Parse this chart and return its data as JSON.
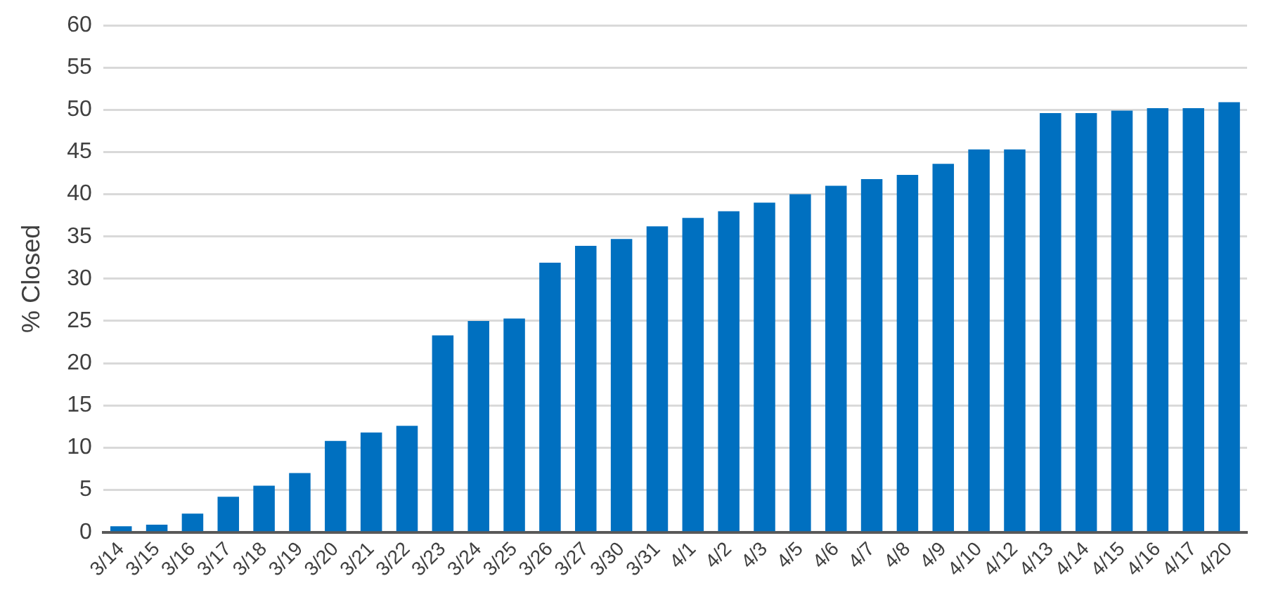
{
  "chart_data": {
    "type": "bar",
    "ylabel": "% Closed",
    "categories": [
      "3/14",
      "3/15",
      "3/16",
      "3/17",
      "3/18",
      "3/19",
      "3/20",
      "3/21",
      "3/22",
      "3/23",
      "3/24",
      "3/25",
      "3/26",
      "3/27",
      "3/30",
      "3/31",
      "4/1",
      "4/2",
      "4/3",
      "4/5",
      "4/6",
      "4/7",
      "4/8",
      "4/9",
      "4/10",
      "4/12",
      "4/13",
      "4/14",
      "4/15",
      "4/16",
      "4/17",
      "4/20"
    ],
    "values": [
      0.7,
      0.9,
      2.2,
      4.2,
      5.5,
      7.0,
      10.8,
      11.8,
      12.6,
      23.3,
      25.0,
      25.3,
      31.9,
      33.9,
      34.7,
      36.2,
      37.2,
      38.0,
      39.0,
      40.0,
      41.0,
      41.8,
      42.3,
      43.6,
      45.3,
      45.3,
      49.6,
      49.6,
      49.9,
      50.2,
      50.2,
      50.9
    ],
    "color": "#0070c0",
    "ylim": [
      0,
      60
    ],
    "yticks": [
      0,
      5,
      10,
      15,
      20,
      25,
      30,
      35,
      40,
      45,
      50,
      55,
      60
    ],
    "grid": "y"
  }
}
